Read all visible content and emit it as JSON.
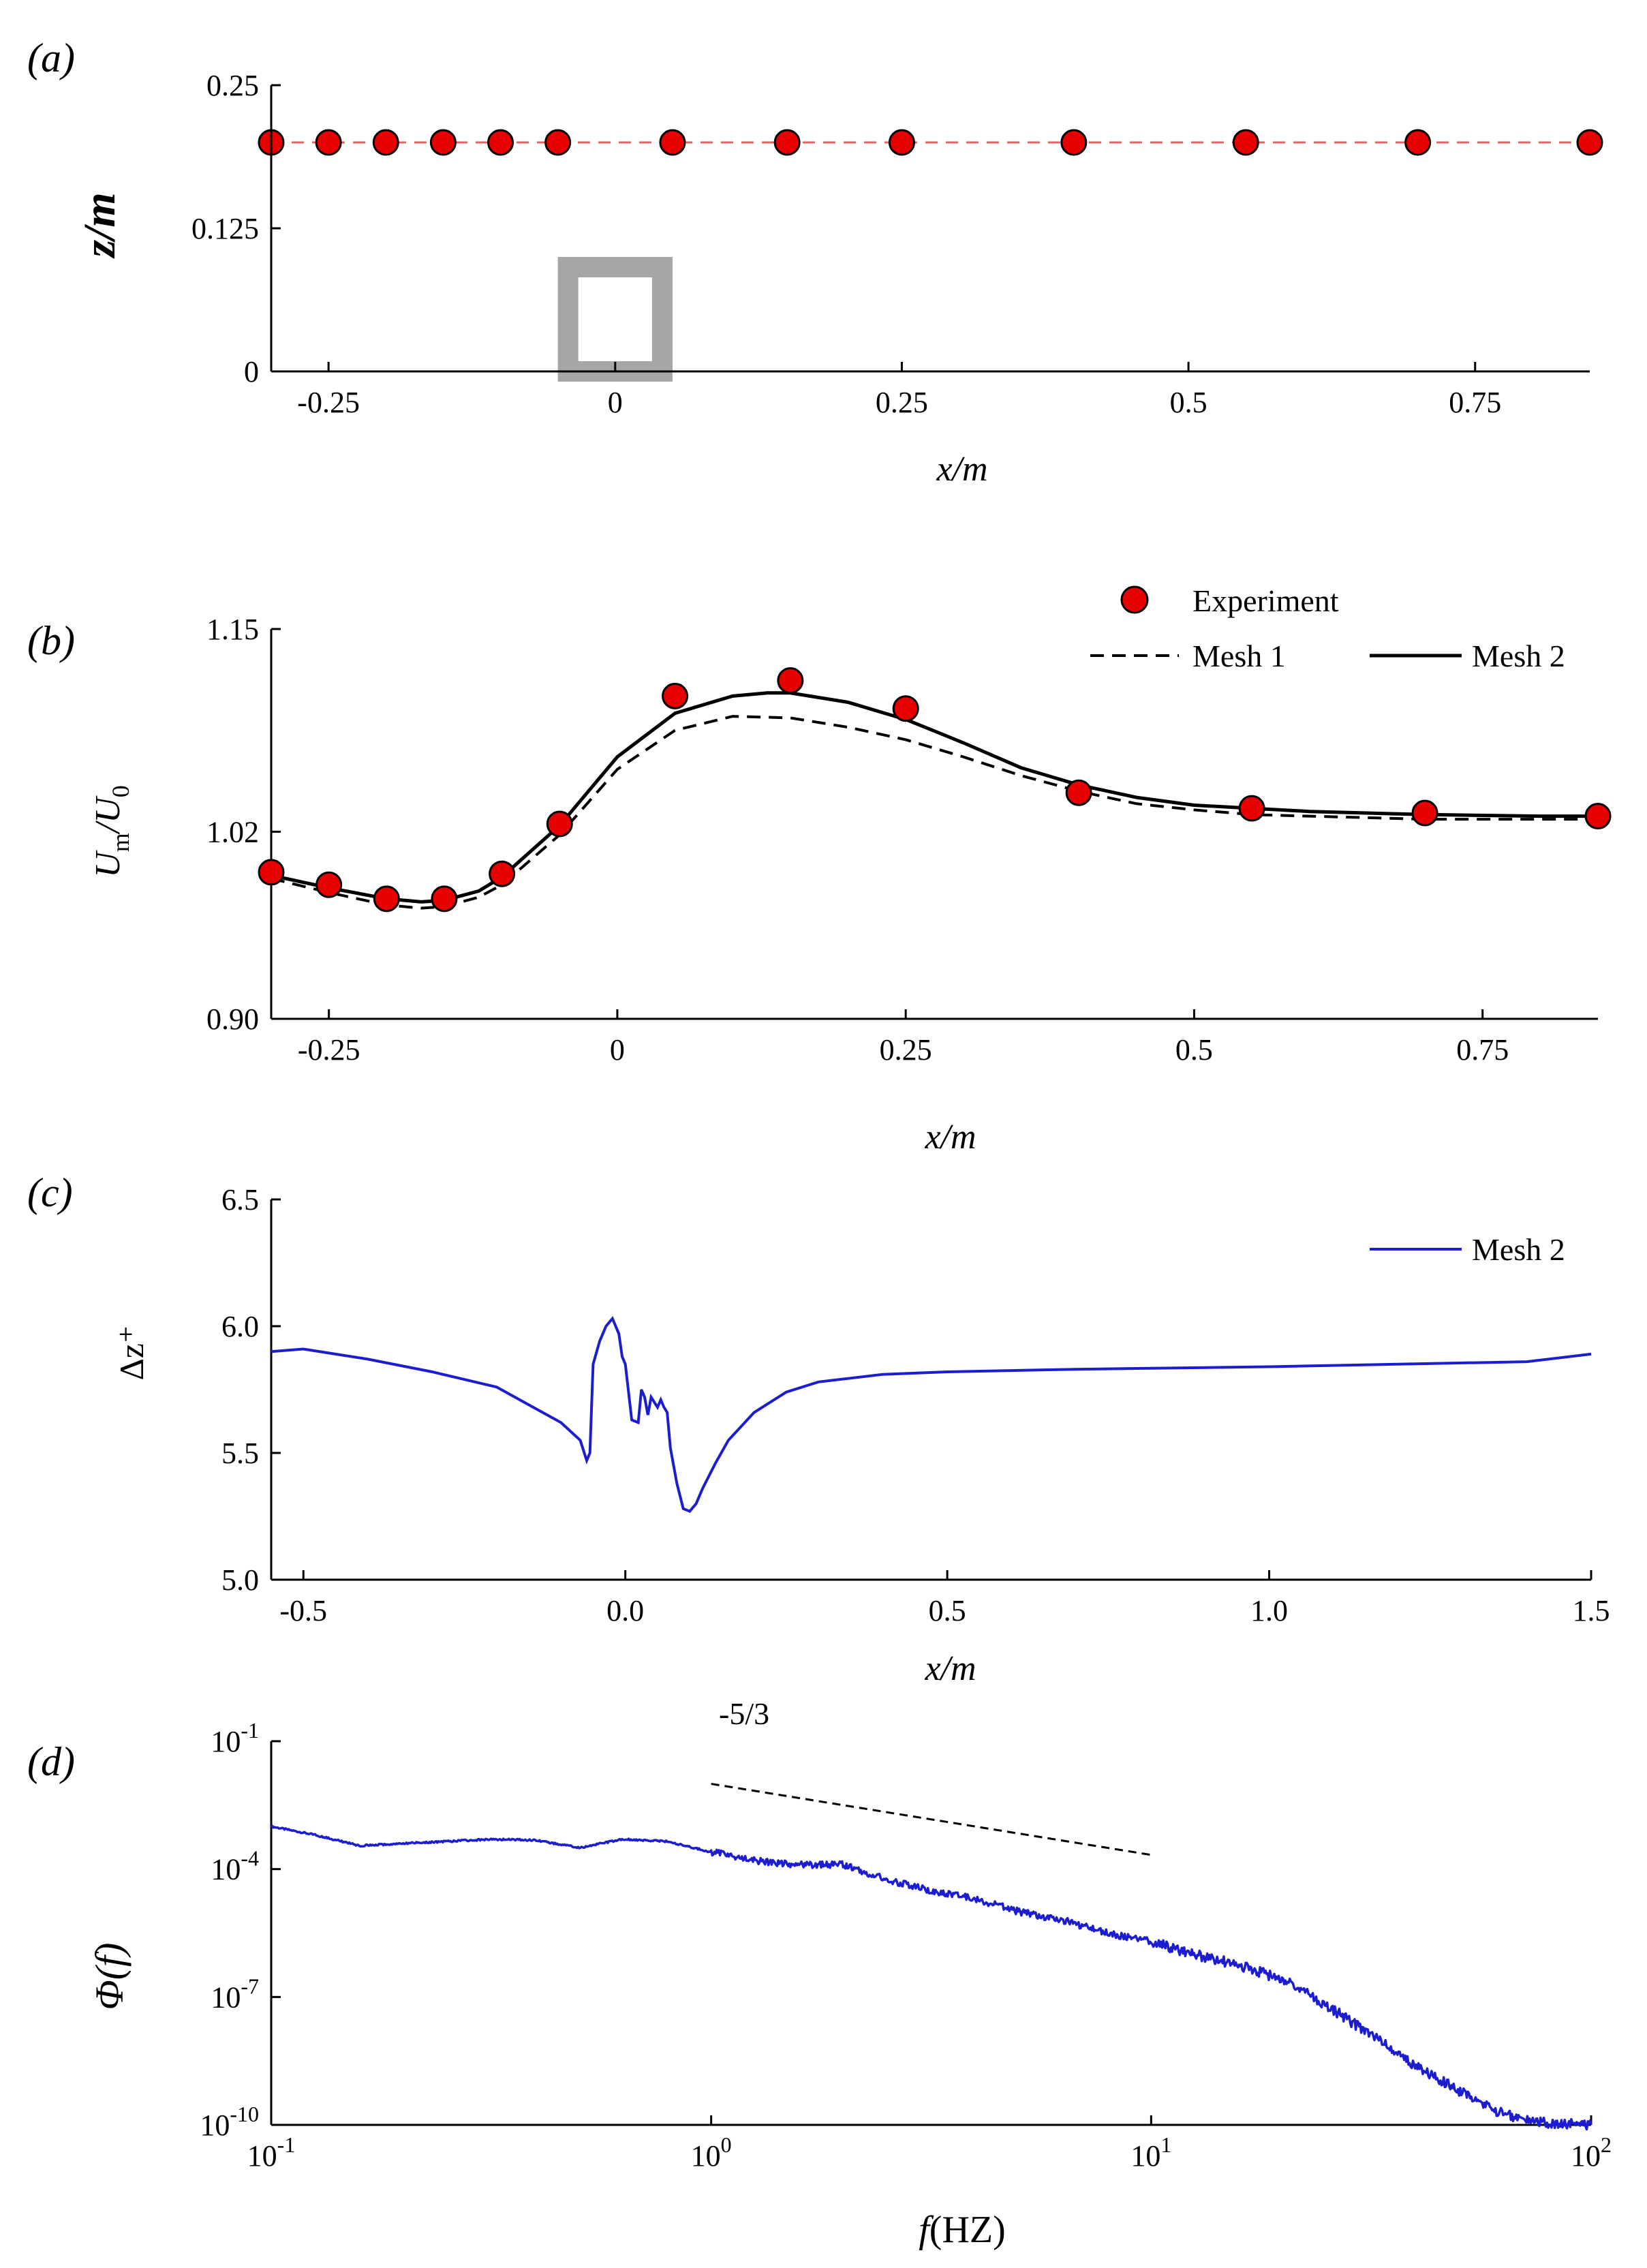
{
  "colors": {
    "marker_fill": "#e60000",
    "marker_stroke": "#000000",
    "dash_line_a": "#e06666",
    "spectrum_line": "#1c1cd0",
    "cube_gray": "#a6a6a6",
    "axis": "#000000"
  },
  "chart_data": [
    {
      "panel": "(a)",
      "type": "scatter",
      "xlabel": "x/m",
      "ylabel": "z/m",
      "xlim": [
        -0.3,
        0.85
      ],
      "ylim": [
        0,
        0.25
      ],
      "xticks": [
        -0.25,
        0,
        0.25,
        0.5,
        0.75
      ],
      "xtick_labels": [
        "-0.25",
        "0",
        "0.25",
        "0.5",
        "0.75"
      ],
      "yticks": [
        0,
        0.125,
        0.25
      ],
      "ytick_labels": [
        "0",
        "0.125",
        "0.25"
      ],
      "probe_line_z": 0.2,
      "points": {
        "x": [
          -0.3,
          -0.25,
          -0.2,
          -0.15,
          -0.1,
          -0.05,
          0.05,
          0.15,
          0.25,
          0.4,
          0.55,
          0.7,
          0.85
        ],
        "z": [
          0.2,
          0.2,
          0.2,
          0.2,
          0.2,
          0.2,
          0.2,
          0.2,
          0.2,
          0.2,
          0.2,
          0.2,
          0.2
        ]
      },
      "cube": {
        "x0": -0.05,
        "x1": 0.05,
        "z0": 0,
        "z1": 0.1
      }
    },
    {
      "panel": "(b)",
      "type": "line",
      "xlabel": "x/m",
      "ylabel": "U_m/U_0",
      "ylabel_main": "U",
      "ylabel_sub1": "m",
      "ylabel_mid": "/U",
      "ylabel_sub2": "0",
      "xlim": [
        -0.3,
        0.85
      ],
      "ylim": [
        0.9,
        1.15
      ],
      "xticks": [
        -0.25,
        0,
        0.25,
        0.5,
        0.75
      ],
      "xtick_labels": [
        "-0.25",
        "0",
        "0.25",
        "0.5",
        "0.75"
      ],
      "yticks": [
        0.9,
        1.02,
        1.15
      ],
      "ytick_labels": [
        "0.90",
        "1.02",
        "1.15"
      ],
      "legend": {
        "experiment": "Experiment",
        "mesh1": "Mesh 1",
        "mesh2": "Mesh 2"
      },
      "experiment": {
        "x": [
          -0.3,
          -0.25,
          -0.2,
          -0.15,
          -0.1,
          -0.05,
          0.05,
          0.15,
          0.25,
          0.4,
          0.55,
          0.7,
          0.85
        ],
        "y": [
          0.994,
          0.986,
          0.977,
          0.977,
          0.993,
          1.025,
          1.107,
          1.117,
          1.099,
          1.045,
          1.035,
          1.032,
          1.03
        ]
      },
      "series": [
        {
          "name": "Mesh 1",
          "style": "dashed",
          "x": [
            -0.3,
            -0.25,
            -0.2,
            -0.17,
            -0.15,
            -0.12,
            -0.1,
            -0.05,
            0.0,
            0.05,
            0.1,
            0.15,
            0.2,
            0.25,
            0.3,
            0.35,
            0.4,
            0.45,
            0.5,
            0.55,
            0.6,
            0.7,
            0.8,
            0.85
          ],
          "y": [
            0.99,
            0.981,
            0.973,
            0.971,
            0.972,
            0.978,
            0.986,
            1.018,
            1.06,
            1.085,
            1.094,
            1.093,
            1.087,
            1.079,
            1.068,
            1.056,
            1.046,
            1.038,
            1.034,
            1.031,
            1.03,
            1.028,
            1.028,
            1.028
          ]
        },
        {
          "name": "Mesh 2",
          "style": "solid",
          "x": [
            -0.3,
            -0.25,
            -0.2,
            -0.17,
            -0.15,
            -0.12,
            -0.1,
            -0.05,
            0.0,
            0.05,
            0.1,
            0.13,
            0.15,
            0.2,
            0.25,
            0.3,
            0.35,
            0.4,
            0.45,
            0.5,
            0.55,
            0.6,
            0.7,
            0.8,
            0.85
          ],
          "y": [
            0.992,
            0.984,
            0.977,
            0.975,
            0.976,
            0.982,
            0.991,
            1.024,
            1.068,
            1.096,
            1.107,
            1.109,
            1.109,
            1.103,
            1.092,
            1.077,
            1.061,
            1.05,
            1.042,
            1.037,
            1.035,
            1.033,
            1.031,
            1.03,
            1.03
          ]
        }
      ]
    },
    {
      "panel": "(c)",
      "type": "line",
      "xlabel": "x/m",
      "ylabel": "Δz⁺",
      "xlim": [
        -0.55,
        1.5
      ],
      "ylim": [
        5.0,
        6.5
      ],
      "xticks": [
        -0.5,
        0,
        0.5,
        1.0,
        1.5
      ],
      "xtick_labels": [
        "-0.5",
        "0.0",
        "0.5",
        "1.0",
        "1.5"
      ],
      "yticks": [
        5.0,
        5.5,
        6.0,
        6.5
      ],
      "ytick_labels": [
        "5.0",
        "5.5",
        "6.0",
        "6.5"
      ],
      "legend": {
        "mesh2": "Mesh 2"
      },
      "series": [
        {
          "name": "Mesh 2",
          "x": [
            -0.55,
            -0.5,
            -0.4,
            -0.3,
            -0.2,
            -0.1,
            -0.07,
            -0.06,
            -0.055,
            -0.05,
            -0.04,
            -0.03,
            -0.02,
            -0.015,
            -0.01,
            -0.005,
            0.0,
            0.01,
            0.02,
            0.025,
            0.03,
            0.035,
            0.04,
            0.05,
            0.055,
            0.06,
            0.065,
            0.07,
            0.08,
            0.09,
            0.1,
            0.11,
            0.12,
            0.14,
            0.16,
            0.2,
            0.25,
            0.3,
            0.4,
            0.5,
            0.7,
            1.0,
            1.2,
            1.4,
            1.5
          ],
          "y": [
            5.9,
            5.91,
            5.87,
            5.82,
            5.76,
            5.62,
            5.55,
            5.47,
            5.5,
            5.85,
            5.94,
            6.0,
            6.03,
            6.0,
            5.97,
            5.88,
            5.85,
            5.63,
            5.62,
            5.75,
            5.72,
            5.65,
            5.72,
            5.68,
            5.71,
            5.68,
            5.66,
            5.52,
            5.38,
            5.28,
            5.27,
            5.3,
            5.36,
            5.46,
            5.55,
            5.66,
            5.74,
            5.78,
            5.81,
            5.82,
            5.83,
            5.84,
            5.85,
            5.86,
            5.89
          ]
        }
      ]
    },
    {
      "panel": "(d)",
      "type": "line",
      "scale": "log-log",
      "xlabel": "f(HZ)",
      "xlabel_func": "f",
      "xlabel_unit": "(HZ)",
      "ylabel": "Φ(f)",
      "xlim_log10": [
        -1,
        2
      ],
      "ylim_log10": [
        -10,
        -1
      ],
      "xtick_exponents": [
        "-1",
        "0",
        "1",
        "2"
      ],
      "ytick_exponents": [
        "-1",
        "-4",
        "-7",
        "-10"
      ],
      "tick_base": "10",
      "slope_annotation": "-5/3",
      "reference_line_log10": {
        "x": [
          0,
          1
        ],
        "y": [
          -2.0,
          -3.667
        ]
      },
      "series": [
        {
          "name": "spectrum",
          "log10_f": [
            -1.0,
            -0.9,
            -0.8,
            -0.7,
            -0.6,
            -0.5,
            -0.4,
            -0.3,
            -0.2,
            -0.1,
            0.0,
            0.1,
            0.2,
            0.3,
            0.4,
            0.5,
            0.6,
            0.7,
            0.8,
            0.9,
            1.0,
            1.1,
            1.2,
            1.3,
            1.4,
            1.5,
            1.6,
            1.7,
            1.8,
            1.9,
            2.0
          ],
          "log10_phi": [
            -3.0,
            -3.2,
            -3.45,
            -3.4,
            -3.35,
            -3.3,
            -3.32,
            -3.5,
            -3.3,
            -3.35,
            -3.6,
            -3.8,
            -3.9,
            -3.9,
            -4.25,
            -4.5,
            -4.7,
            -5.0,
            -5.2,
            -5.5,
            -5.7,
            -6.0,
            -6.25,
            -6.6,
            -7.2,
            -7.9,
            -8.6,
            -9.2,
            -9.75,
            -9.95,
            -10.0
          ]
        }
      ]
    }
  ]
}
